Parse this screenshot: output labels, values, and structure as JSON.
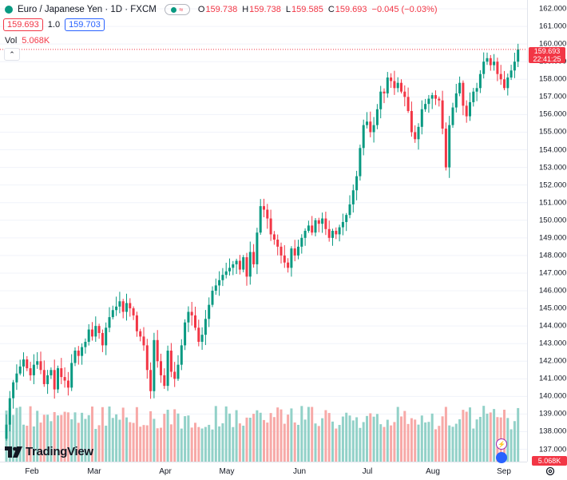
{
  "header": {
    "title": "Euro / Japanese Yen · 1D · FXCM",
    "ohlc": [
      {
        "key": "O",
        "value": "159.738"
      },
      {
        "key": "H",
        "value": "159.738"
      },
      {
        "key": "L",
        "value": "159.585"
      },
      {
        "key": "C",
        "value": "159.693"
      }
    ],
    "change": "−0.045 (−0.03%)",
    "eye_icon_text": "≈",
    "bid": "159.693",
    "spread": "1.0",
    "ask": "159.703",
    "vol_label": "Vol",
    "vol_value": "5.068K",
    "collapse_icon": "⌃"
  },
  "price_tag": {
    "price": "159.693",
    "countdown": "22:41:25"
  },
  "volume_tag": "5.068K",
  "logo_text": "TradingView",
  "colors": {
    "up": "#089981",
    "down": "#f23645",
    "up_vol": "#92d1c8",
    "down_vol": "#f7a9a7",
    "grid": "#f0f3fa"
  },
  "icons": {
    "settings": "gear-icon",
    "flash": "lightning-icon",
    "events": "calendar-icon"
  },
  "chart_data": {
    "type": "candlestick",
    "symbol": "EURJPY",
    "interval": "1D",
    "ylim": [
      136.3,
      162.5
    ],
    "y_ticks": [
      "137.000",
      "138.000",
      "139.000",
      "140.000",
      "141.000",
      "142.000",
      "143.000",
      "144.000",
      "145.000",
      "146.000",
      "147.000",
      "148.000",
      "149.000",
      "150.000",
      "151.000",
      "152.000",
      "153.000",
      "154.000",
      "155.000",
      "156.000",
      "157.000",
      "158.000",
      "159.000",
      "160.000",
      "161.000",
      "162.000"
    ],
    "x_ticks": [
      "Feb",
      "Mar",
      "Apr",
      "May",
      "Jun",
      "Jul",
      "Aug",
      "Sep"
    ],
    "close_series": [
      138.4,
      139.9,
      140.8,
      141.3,
      141.7,
      142.1,
      141.6,
      141.2,
      141.8,
      142.0,
      141.5,
      140.7,
      141.2,
      141.5,
      140.4,
      141.6,
      141.1,
      140.9,
      140.5,
      141.9,
      142.6,
      142.3,
      142.8,
      143.1,
      143.8,
      143.4,
      144.0,
      143.6,
      142.9,
      143.9,
      144.5,
      144.9,
      145.1,
      145.4,
      144.8,
      145.3,
      145.0,
      144.6,
      143.7,
      143.4,
      142.9,
      141.5,
      140.3,
      143.2,
      142.0,
      141.2,
      140.6,
      142.6,
      141.4,
      141.0,
      141.8,
      142.9,
      144.2,
      144.8,
      144.6,
      143.9,
      143.1,
      143.5,
      144.4,
      145.2,
      146.0,
      146.3,
      146.6,
      146.9,
      147.1,
      147.3,
      147.5,
      147.7,
      147.2,
      147.9,
      146.8,
      148.2,
      147.5,
      149.3,
      150.8,
      150.6,
      150.1,
      149.2,
      148.9,
      148.5,
      148.0,
      147.6,
      147.3,
      148.4,
      148.0,
      148.5,
      149.0,
      149.4,
      149.7,
      149.3,
      150.0,
      149.8,
      150.1,
      149.5,
      149.0,
      149.4,
      149.2,
      149.6,
      149.9,
      150.3,
      150.9,
      151.7,
      152.5,
      154.1,
      155.4,
      155.6,
      155.0,
      155.4,
      156.3,
      157.3,
      157.2,
      158.1,
      157.9,
      157.5,
      157.8,
      157.3,
      157.0,
      156.2,
      155.0,
      154.6,
      155.3,
      156.3,
      156.6,
      156.9,
      157.1,
      156.9,
      156.8,
      155.2,
      153.0,
      155.4,
      156.4,
      157.2,
      157.8,
      156.5,
      155.9,
      156.7,
      157.3,
      157.5,
      158.3,
      159.0,
      159.2,
      158.8,
      159.0,
      158.3,
      158.0,
      157.5,
      158.1,
      158.5,
      159.0,
      159.7
    ]
  }
}
